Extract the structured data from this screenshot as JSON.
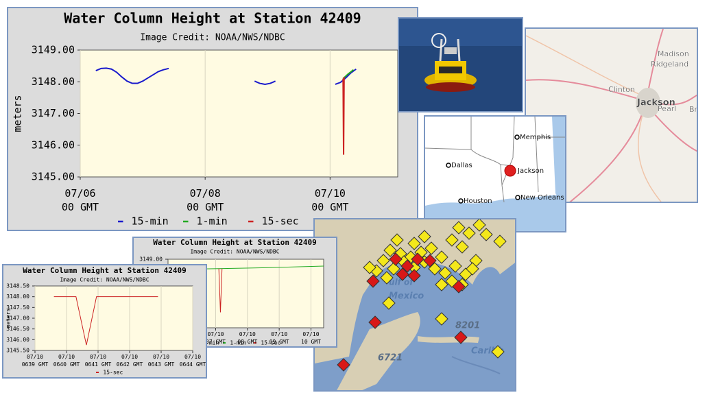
{
  "chart_data": [
    {
      "type": "line",
      "title": "Water Column Height at Station 42409",
      "subtitle": "Image Credit: NOAA/NWS/NDBC",
      "y_label": "meters",
      "xlim": [
        0,
        122
      ],
      "ylim": [
        3145,
        3149
      ],
      "xticks": [
        {
          "value": 0,
          "label": "07/06\n00 GMT"
        },
        {
          "value": 48,
          "label": "07/08\n00 GMT"
        },
        {
          "value": 96,
          "label": "07/10\n00 GMT"
        }
      ],
      "yticks": [
        {
          "value": 3145,
          "label": "3145.00"
        },
        {
          "value": 3146,
          "label": "3146.00"
        },
        {
          "value": 3147,
          "label": "3147.00"
        },
        {
          "value": 3148,
          "label": "3148.00"
        },
        {
          "value": 3149,
          "label": "3149.00"
        }
      ],
      "grid": "x",
      "series": [
        {
          "name": "15-min",
          "color": "#1a1acc",
          "x": [
            6,
            8,
            10,
            12,
            14,
            16,
            18,
            20,
            22,
            24,
            26,
            28,
            30,
            32,
            34,
            50,
            67,
            69,
            71,
            73,
            75,
            85,
            98,
            100,
            102,
            104,
            106
          ],
          "values": [
            3148.35,
            3148.42,
            3148.43,
            3148.4,
            3148.3,
            3148.15,
            3148.02,
            3147.95,
            3147.95,
            3148.02,
            3148.12,
            3148.22,
            3148.32,
            3148.38,
            3148.42,
            null,
            3148.02,
            3147.95,
            3147.92,
            3147.95,
            3148.02,
            null,
            3147.92,
            3147.98,
            3148.12,
            3148.28,
            3148.4
          ]
        },
        {
          "name": "1-min",
          "color": "#22aa22",
          "x": [
            101,
            103,
            105
          ],
          "values": [
            3148.1,
            3148.25,
            3148.38
          ]
        },
        {
          "name": "15-sec",
          "color": "#cc2222",
          "x": [
            101,
            101.2,
            101.4
          ],
          "values": [
            3148.1,
            3145.7,
            3148.15
          ]
        }
      ]
    },
    {
      "type": "line",
      "title": "Water Column Height at Station 42409",
      "subtitle": "Image Credit: NOAA/NWS/NDBC",
      "xlim": [
        5.5,
        10.4
      ],
      "ylim": [
        3145,
        3149
      ],
      "xticks": [
        {
          "value": 7,
          "label": "07/10\n07 GMT"
        },
        {
          "value": 8,
          "label": "07/10\n08 GMT"
        },
        {
          "value": 9,
          "label": "07/10\n09 GMT"
        },
        {
          "value": 10,
          "label": "07/10\n10 GMT"
        }
      ],
      "yticks": [
        {
          "value": 3149,
          "label": "3149.00"
        }
      ],
      "grid": "x",
      "series": [
        {
          "name": "15-min",
          "color": "#1a1acc",
          "x": [],
          "values": []
        },
        {
          "name": "1-min",
          "color": "#22aa22",
          "x": [
            5.5,
            7.1,
            8.5,
            10.4
          ],
          "values": [
            3148.4,
            3148.45,
            3148.5,
            3148.6
          ]
        },
        {
          "name": "15-sec",
          "color": "#cc2222",
          "x": [
            7.1,
            7.15,
            7.2
          ],
          "values": [
            3148.45,
            3145.9,
            3148.45
          ]
        }
      ]
    },
    {
      "type": "line",
      "title": "Water Column Height at Station 42409",
      "subtitle": "Image Credit: NOAA/NWS/NDBC",
      "y_label": "meters",
      "xlim": [
        39,
        44
      ],
      "ylim": [
        3145.5,
        3148.5
      ],
      "xticks": [
        {
          "value": 39,
          "label": "07/10\n0639 GMT"
        },
        {
          "value": 40,
          "label": "07/10\n0640 GMT"
        },
        {
          "value": 41,
          "label": "07/10\n0641 GMT"
        },
        {
          "value": 42,
          "label": "07/10\n0642 GMT"
        },
        {
          "value": 43,
          "label": "07/10\n0643 GMT"
        },
        {
          "value": 44,
          "label": "07/10\n0644 GMT"
        }
      ],
      "yticks": [
        {
          "value": 3145.5,
          "label": "3145.50"
        },
        {
          "value": 3146,
          "label": "3146.00"
        },
        {
          "value": 3146.5,
          "label": "3146.50"
        },
        {
          "value": 3147,
          "label": "3147.00"
        },
        {
          "value": 3147.5,
          "label": "3147.50"
        },
        {
          "value": 3148,
          "label": "3148.00"
        },
        {
          "value": 3148.5,
          "label": "3148.50"
        }
      ],
      "grid": "x",
      "series": [
        {
          "name": "15-sec",
          "color": "#cc2222",
          "x": [
            39.6,
            40.3,
            40.63,
            40.95,
            42.9
          ],
          "values": [
            3148.0,
            3148.0,
            3145.75,
            3148.0,
            3148.0
          ]
        }
      ]
    }
  ],
  "us_map": {
    "labels": [
      "Memphis",
      "Dallas",
      "Jackson",
      "Houston",
      "New Orleans"
    ]
  },
  "road_map": {
    "labels": [
      "Madison",
      "Ridgeland",
      "Clinton",
      "Jackson",
      "Pearl",
      "Bra"
    ]
  },
  "gulf_map": {
    "labels": [
      "ulf of",
      "Mexico",
      "8201",
      "6721",
      "Caribb"
    ]
  }
}
